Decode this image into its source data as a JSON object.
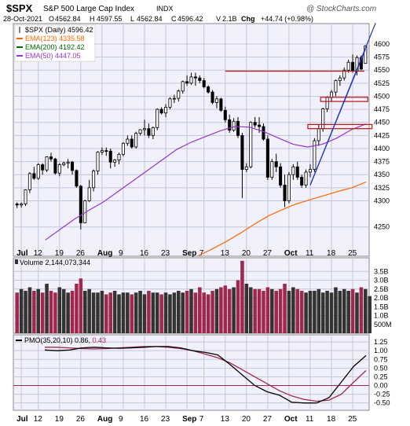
{
  "header": {
    "symbol": "$SPX",
    "name": "S&P 500 Large Cap Index",
    "exchange": "INDX",
    "date": "28-Oct-2021",
    "open_label": "O",
    "open": "4562.84",
    "high_label": "H",
    "high": "4597.55",
    "low_label": "L",
    "low": "4562.84",
    "close_label": "C",
    "close": "4596.42",
    "volume_label": "V",
    "volume": "2.1B",
    "change_label": "Chg",
    "change": "+44.74 (+0.98%)",
    "watermark": "@ StockCharts.com"
  },
  "legend": [
    {
      "label": "$SPX (Daily) 4596.42",
      "color": "#000000",
      "icon": "candle-icon"
    },
    {
      "label": "EMA(123) 4335.58",
      "color": "#ff6600"
    },
    {
      "label": "EMA(200) 4192.42",
      "color": "#006600"
    },
    {
      "label": "EMA(50) 4447.05",
      "color": "#9933cc"
    }
  ],
  "volume_label": "Volume 2,144,073,344",
  "pmo_label_prefix": "PMO(35,20,10) 0.86, ",
  "pmo_label_value": "0.43",
  "colors": {
    "bg": "#ffffff",
    "plot_bg": "#f1f1fb",
    "grid": "#c5c5dc",
    "up": "#000000",
    "down": "#000000",
    "ema123": "#ff6600",
    "ema50": "#9933cc",
    "vol_up": "#333333",
    "vol_down": "#a0284f",
    "pmo": "#000000",
    "signal": "#a0284f",
    "zero": "#a0284f",
    "trend": "#2233bb",
    "level": "#bb1111"
  },
  "chart_data": [
    {
      "type": "candlestick",
      "panel": "price",
      "ylim": [
        4215,
        4630
      ],
      "y_ticks": [
        4250,
        4300,
        4325,
        4350,
        4375,
        4400,
        4425,
        4450,
        4475,
        4500,
        4525,
        4550,
        4575,
        4600
      ],
      "x_ticks": [
        "Jul",
        "12",
        "19",
        "26",
        "Aug",
        "9",
        "16",
        "23",
        "Sep",
        "7",
        "13",
        "20",
        "27",
        "Oct",
        "11",
        "18",
        "25"
      ],
      "tick_index": [
        1,
        5,
        10,
        15,
        20,
        25,
        30,
        35,
        40,
        44,
        49,
        54,
        59,
        64,
        69,
        74,
        79
      ],
      "series": [
        {
          "name": "$SPX (Daily)",
          "values": [
            [
              4294,
              4297,
              4286,
              4292
            ],
            [
              4292,
              4297,
              4287,
              4294
            ],
            [
              4294,
              4322,
              4290,
              4321
            ],
            [
              4321,
              4355,
              4315,
              4352
            ],
            [
              4352,
              4365,
              4340,
              4343
            ],
            [
              4343,
              4372,
              4340,
              4369
            ],
            [
              4369,
              4372,
              4350,
              4359
            ],
            [
              4359,
              4385,
              4355,
              4384
            ],
            [
              4384,
              4392,
              4375,
              4380
            ],
            [
              4380,
              4382,
              4350,
              4353
            ],
            [
              4353,
              4372,
              4347,
              4369
            ],
            [
              4369,
              4375,
              4366,
              4372
            ],
            [
              4372,
              4380,
              4362,
              4374
            ],
            [
              4374,
              4376,
              4350,
              4358
            ],
            [
              4358,
              4360,
              4325,
              4328
            ],
            [
              4328,
              4330,
              4245,
              4258
            ],
            [
              4258,
              4302,
              4257,
              4300
            ],
            [
              4300,
              4340,
              4298,
              4325
            ],
            [
              4325,
              4360,
              4318,
              4357
            ],
            [
              4357,
              4395,
              4350,
              4393
            ],
            [
              4393,
              4402,
              4388,
              4396
            ],
            [
              4396,
              4402,
              4386,
              4395
            ],
            [
              4395,
              4400,
              4362,
              4374
            ],
            [
              4374,
              4380,
              4365,
              4378
            ],
            [
              4378,
              4392,
              4370,
              4389
            ],
            [
              4389,
              4412,
              4385,
              4410
            ],
            [
              4410,
              4425,
              4405,
              4418
            ],
            [
              4418,
              4425,
              4400,
              4403
            ],
            [
              4403,
              4432,
              4400,
              4429
            ],
            [
              4429,
              4437,
              4425,
              4436
            ],
            [
              4436,
              4455,
              4425,
              4438
            ],
            [
              4438,
              4448,
              4420,
              4425
            ],
            [
              4425,
              4442,
              4418,
              4440
            ],
            [
              4440,
              4477,
              4435,
              4475
            ],
            [
              4475,
              4479,
              4465,
              4468
            ],
            [
              4468,
              4485,
              4460,
              4479
            ],
            [
              4479,
              4498,
              4475,
              4495
            ],
            [
              4495,
              4503,
              4487,
              4496
            ],
            [
              4496,
              4513,
              4490,
              4510
            ],
            [
              4510,
              4530,
              4505,
              4528
            ],
            [
              4528,
              4540,
              4520,
              4525
            ],
            [
              4525,
              4545,
              4522,
              4537
            ],
            [
              4537,
              4545,
              4520,
              4535
            ],
            [
              4535,
              4540,
              4525,
              4530
            ],
            [
              4530,
              4535,
              4515,
              4518
            ],
            [
              4518,
              4521,
              4505,
              4508
            ],
            [
              4508,
              4512,
              4485,
              4488
            ],
            [
              4488,
              4500,
              4477,
              4495
            ],
            [
              4495,
              4497,
              4470,
              4473
            ],
            [
              4473,
              4480,
              4450,
              4455
            ],
            [
              4455,
              4465,
              4430,
              4435
            ],
            [
              4435,
              4458,
              4432,
              4452
            ],
            [
              4452,
              4460,
              4420,
              4425
            ],
            [
              4425,
              4430,
              4305,
              4360
            ],
            [
              4360,
              4372,
              4355,
              4365
            ],
            [
              4365,
              4452,
              4362,
              4450
            ],
            [
              4450,
              4460,
              4440,
              4445
            ],
            [
              4445,
              4460,
              4430,
              4442
            ],
            [
              4442,
              4448,
              4415,
              4418
            ],
            [
              4418,
              4425,
              4340,
              4345
            ],
            [
              4345,
              4380,
              4340,
              4375
            ],
            [
              4375,
              4390,
              4355,
              4365
            ],
            [
              4365,
              4372,
              4325,
              4330
            ],
            [
              4330,
              4350,
              4288,
              4300
            ],
            [
              4300,
              4355,
              4295,
              4350
            ],
            [
              4350,
              4370,
              4340,
              4365
            ],
            [
              4365,
              4375,
              4340,
              4345
            ],
            [
              4345,
              4350,
              4325,
              4330
            ],
            [
              4330,
              4360,
              4325,
              4355
            ],
            [
              4355,
              4370,
              4345,
              4360
            ],
            [
              4360,
              4420,
              4355,
              4415
            ],
            [
              4415,
              4445,
              4405,
              4438
            ],
            [
              4438,
              4478,
              4432,
              4476
            ],
            [
              4476,
              4500,
              4470,
              4498
            ],
            [
              4498,
              4512,
              4490,
              4508
            ],
            [
              4508,
              4532,
              4500,
              4530
            ],
            [
              4530,
              4540,
              4520,
              4535
            ],
            [
              4535,
              4555,
              4530,
              4550
            ],
            [
              4550,
              4570,
              4545,
              4565
            ],
            [
              4565,
              4580,
              4545,
              4548
            ],
            [
              4548,
              4578,
              4540,
              4574
            ],
            [
              4574,
              4578,
              4550,
              4552
            ],
            [
              4562.84,
              4597.55,
              4562.84,
              4596.42
            ]
          ]
        },
        {
          "name": "EMA(123)",
          "values": [
            4195,
            4208,
            4222,
            4238,
            4255,
            4271,
            4283,
            4294,
            4302,
            4310,
            4318,
            4325,
            4336
          ]
        },
        {
          "name": "EMA(50)",
          "values": [
            4225,
            4245,
            4265,
            4282,
            4298,
            4318,
            4338,
            4358,
            4378,
            4398,
            4412,
            4423,
            4434,
            4442,
            4441,
            4432,
            4420,
            4408,
            4403,
            4408,
            4420,
            4436,
            4447
          ]
        }
      ],
      "levels": [
        {
          "from": 4548,
          "to": 4548
        },
        {
          "from": 4490,
          "to": 4498
        },
        {
          "from": 4438,
          "to": 4446
        }
      ]
    },
    {
      "type": "bar",
      "panel": "volume",
      "ylim": [
        0,
        4.0
      ],
      "y_ticks": [
        "500M",
        "1.0B",
        "1.5B",
        "2.0B",
        "2.5B",
        "3.0B",
        "3.5B"
      ],
      "series": [
        {
          "name": "Volume",
          "values": [
            2.3,
            2.5,
            2.4,
            2.6,
            2.4,
            2.5,
            2.3,
            2.8,
            2.4,
            2.3,
            2.6,
            2.5,
            2.3,
            2.4,
            2.8,
            3.1,
            2.4,
            2.5,
            2.3,
            2.3,
            2.4,
            2.2,
            2.3,
            2.4,
            2.2,
            2.3,
            2.3,
            2.2,
            2.3,
            2.4,
            2.2,
            2.4,
            2.3,
            2.3,
            2.2,
            2.3,
            2.2,
            2.3,
            2.4,
            2.3,
            2.4,
            2.5,
            2.3,
            2.6,
            2.3,
            2.2,
            2.4,
            2.5,
            2.6,
            2.7,
            2.5,
            2.6,
            3.0,
            4.1,
            2.8,
            2.6,
            2.5,
            2.5,
            2.4,
            2.6,
            2.5,
            2.4,
            2.5,
            2.8,
            2.4,
            2.6,
            2.5,
            2.4,
            2.3,
            2.4,
            2.4,
            2.5,
            2.3,
            2.4,
            2.3,
            2.6,
            2.4,
            2.5,
            2.4,
            2.5,
            2.3,
            2.6,
            2.5,
            2.1
          ]
        }
      ]
    },
    {
      "type": "line",
      "panel": "pmo",
      "ylim": [
        -0.62,
        1.32
      ],
      "y_ticks": [
        -0.5,
        -0.25,
        0.0,
        0.25,
        0.5,
        0.75,
        1.0,
        1.25
      ],
      "series": [
        {
          "name": "PMO(35,20,10)",
          "values": [
            1.02,
            1.0,
            1.02,
            1.08,
            1.1,
            1.08,
            1.07,
            1.08,
            1.1,
            1.12,
            1.12,
            1.08,
            1.0,
            0.95,
            0.88,
            0.6,
            0.3,
            0.0,
            -0.18,
            -0.28,
            -0.48,
            -0.5,
            -0.5,
            -0.35,
            0.1,
            0.55,
            0.86
          ]
        },
        {
          "name": "Signal",
          "values": [
            1.1,
            1.1,
            1.08,
            1.06,
            1.05,
            1.06,
            1.08,
            1.1,
            1.12,
            1.12,
            1.1,
            1.06,
            1.0,
            0.9,
            0.8,
            0.65,
            0.45,
            0.25,
            0.05,
            -0.15,
            -0.3,
            -0.4,
            -0.45,
            -0.42,
            -0.25,
            0.1,
            0.43
          ]
        }
      ]
    }
  ]
}
